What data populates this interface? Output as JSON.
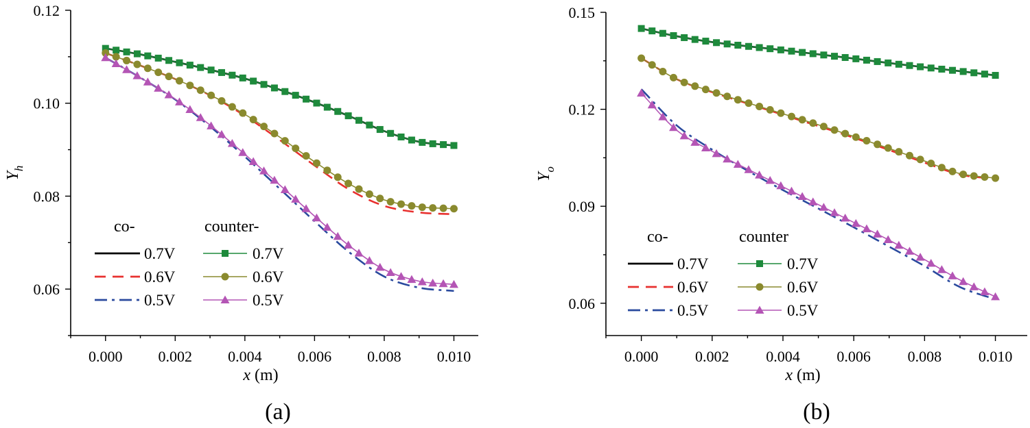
{
  "chart_data": [
    {
      "id": "a",
      "type": "line",
      "panel_label": "(a)",
      "xlabel": "x",
      "xlabel_unit": "(m)",
      "ylabel": "Y",
      "ylabel_sub": "h",
      "xlim": [
        -0.001,
        0.0107
      ],
      "ylim": [
        0.05,
        0.12
      ],
      "xticks": [
        0.0,
        0.002,
        0.004,
        0.006,
        0.008,
        0.01
      ],
      "xtick_labels": [
        "0.000",
        "0.002",
        "0.004",
        "0.006",
        "0.008",
        "0.010"
      ],
      "yticks": [
        0.06,
        0.08,
        0.1,
        0.12
      ],
      "ytick_labels": [
        "0.06",
        "0.08",
        "0.10",
        "0.12"
      ],
      "legend": {
        "co_header": "co-",
        "counter_header": "counter-",
        "labels": [
          "0.7V",
          "0.6V",
          "0.5V"
        ],
        "placement": "lower-left"
      },
      "series": [
        {
          "name": "co- 0.7V",
          "style": "solid",
          "color": "#000000",
          "x": [
            0,
            0.001,
            0.002,
            0.003,
            0.004,
            0.005,
            0.006,
            0.007,
            0.008,
            0.009,
            0.01
          ],
          "y": [
            0.1118,
            0.1105,
            0.1089,
            0.1072,
            0.1053,
            0.1029,
            0.1002,
            0.0972,
            0.094,
            0.0917,
            0.0909
          ]
        },
        {
          "name": "co- 0.6V",
          "style": "dash",
          "color": "#e8312f",
          "x": [
            0,
            0.001,
            0.002,
            0.003,
            0.004,
            0.005,
            0.006,
            0.007,
            0.008,
            0.009,
            0.01
          ],
          "y": [
            0.1108,
            0.1081,
            0.1052,
            0.1017,
            0.0973,
            0.0921,
            0.0866,
            0.0814,
            0.0779,
            0.0765,
            0.0761
          ]
        },
        {
          "name": "co- 0.5V",
          "style": "dashdot",
          "color": "#2a4a9e",
          "x": [
            0,
            0.001,
            0.002,
            0.003,
            0.004,
            0.005,
            0.006,
            0.007,
            0.008,
            0.009,
            0.01
          ],
          "y": [
            0.1098,
            0.1055,
            0.1008,
            0.095,
            0.0885,
            0.0816,
            0.0746,
            0.0679,
            0.0627,
            0.0603,
            0.0596
          ]
        },
        {
          "name": "counter- 0.7V",
          "style": "solid-square",
          "color": "#1e8a3c",
          "x": [
            0,
            0.001,
            0.002,
            0.003,
            0.004,
            0.005,
            0.006,
            0.007,
            0.008,
            0.009,
            0.01
          ],
          "y": [
            0.1118,
            0.1105,
            0.1089,
            0.1072,
            0.1053,
            0.1029,
            0.1002,
            0.0972,
            0.094,
            0.0917,
            0.0909
          ]
        },
        {
          "name": "counter- 0.6V",
          "style": "solid-circle",
          "color": "#8a8a2e",
          "x": [
            0,
            0.001,
            0.002,
            0.003,
            0.004,
            0.005,
            0.006,
            0.007,
            0.008,
            0.009,
            0.01
          ],
          "y": [
            0.1108,
            0.1081,
            0.1052,
            0.1018,
            0.0976,
            0.0927,
            0.0874,
            0.0826,
            0.0792,
            0.0777,
            0.0773
          ]
        },
        {
          "name": "counter- 0.5V",
          "style": "solid-triangle",
          "color": "#b455b5",
          "x": [
            0,
            0.001,
            0.002,
            0.003,
            0.004,
            0.005,
            0.006,
            0.007,
            0.008,
            0.009,
            0.01
          ],
          "y": [
            0.1098,
            0.1055,
            0.1009,
            0.0953,
            0.089,
            0.0824,
            0.0757,
            0.0693,
            0.0642,
            0.0617,
            0.061
          ]
        }
      ]
    },
    {
      "id": "b",
      "type": "line",
      "panel_label": "(b)",
      "xlabel": "x",
      "xlabel_unit": "(m)",
      "ylabel": "Y",
      "ylabel_sub": "o",
      "xlim": [
        -0.001,
        0.0109
      ],
      "ylim": [
        0.05,
        0.15
      ],
      "xticks": [
        0.0,
        0.002,
        0.004,
        0.006,
        0.008,
        0.01
      ],
      "xtick_labels": [
        "0.000",
        "0.002",
        "0.004",
        "0.006",
        "0.008",
        "0.010"
      ],
      "yticks": [
        0.06,
        0.09,
        0.12,
        0.15
      ],
      "ytick_labels": [
        "0.06",
        "0.09",
        "0.12",
        "0.15"
      ],
      "legend": {
        "co_header": "co-",
        "counter_header": "counter",
        "labels": [
          "0.7V",
          "0.6V",
          "0.5V"
        ],
        "placement": "lower-left"
      },
      "series": [
        {
          "name": "co- 0.7V",
          "style": "solid",
          "color": "#000000",
          "x": [
            0,
            0.001,
            0.002,
            0.003,
            0.004,
            0.005,
            0.006,
            0.007,
            0.008,
            0.009,
            0.01
          ],
          "y": [
            0.145,
            0.1426,
            0.1408,
            0.1395,
            0.1383,
            0.137,
            0.1357,
            0.1343,
            0.133,
            0.1318,
            0.1305
          ]
        },
        {
          "name": "co- 0.6V",
          "style": "dash",
          "color": "#e8312f",
          "x": [
            0,
            0.001,
            0.002,
            0.003,
            0.004,
            0.005,
            0.006,
            0.007,
            0.008,
            0.009,
            0.01
          ],
          "y": [
            0.1358,
            0.1293,
            0.1253,
            0.1218,
            0.1183,
            0.1148,
            0.1112,
            0.1074,
            0.1035,
            0.0998,
            0.0985
          ]
        },
        {
          "name": "co- 0.5V",
          "style": "dashdot",
          "color": "#2a4a9e",
          "x": [
            0,
            0.001,
            0.002,
            0.003,
            0.004,
            0.005,
            0.006,
            0.007,
            0.008,
            0.009,
            0.01
          ],
          "y": [
            0.1262,
            0.115,
            0.1075,
            0.101,
            0.095,
            0.0893,
            0.0835,
            0.0775,
            0.0715,
            0.065,
            0.0612
          ]
        },
        {
          "name": "counter 0.7V",
          "style": "solid-square",
          "color": "#1e8a3c",
          "x": [
            0,
            0.001,
            0.002,
            0.003,
            0.004,
            0.005,
            0.006,
            0.007,
            0.008,
            0.009,
            0.01
          ],
          "y": [
            0.145,
            0.1426,
            0.1408,
            0.1395,
            0.1383,
            0.137,
            0.1357,
            0.1343,
            0.133,
            0.1318,
            0.1305
          ]
        },
        {
          "name": "counter 0.6V",
          "style": "solid-circle",
          "color": "#8a8a2e",
          "x": [
            0,
            0.001,
            0.002,
            0.003,
            0.004,
            0.005,
            0.006,
            0.007,
            0.008,
            0.009,
            0.01
          ],
          "y": [
            0.1358,
            0.1293,
            0.1255,
            0.122,
            0.1186,
            0.1152,
            0.1116,
            0.1079,
            0.104,
            0.1001,
            0.0987
          ]
        },
        {
          "name": "counter 0.5V",
          "style": "solid-triangle",
          "color": "#b455b5",
          "x": [
            0,
            0.001,
            0.002,
            0.003,
            0.004,
            0.005,
            0.006,
            0.007,
            0.008,
            0.009,
            0.01
          ],
          "y": [
            0.125,
            0.1135,
            0.107,
            0.1015,
            0.096,
            0.0905,
            0.085,
            0.0795,
            0.0735,
            0.0672,
            0.062
          ]
        }
      ]
    }
  ]
}
